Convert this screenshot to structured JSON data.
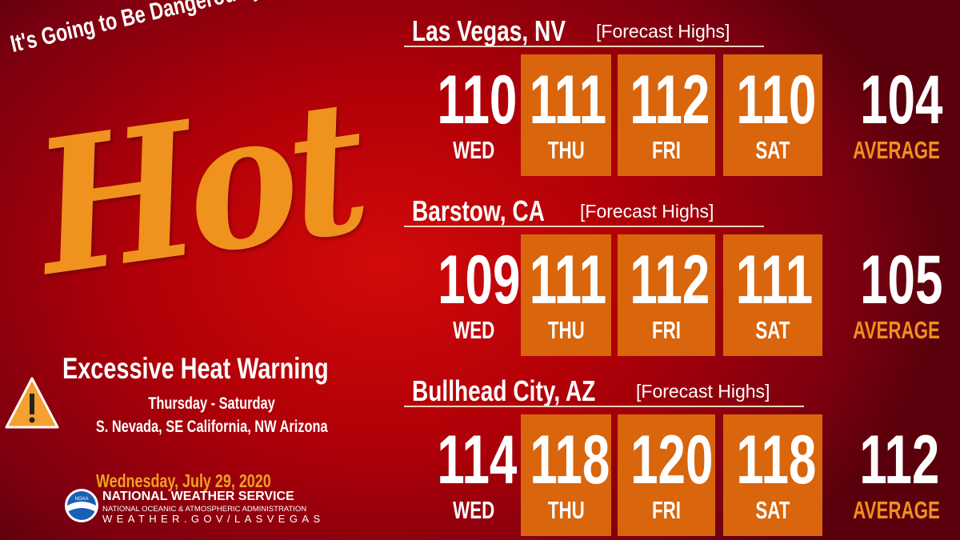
{
  "tagline": "It's Going to Be Dangerously",
  "headline": "Hot",
  "warning": {
    "title": "Excessive Heat Warning",
    "days": "Thursday - Saturday",
    "areas": "S. Nevada, SE California, NW Arizona",
    "icon": "warning-triangle-icon"
  },
  "date": "Wednesday, July 29, 2020",
  "nws": {
    "logo_text": "NOAA",
    "name": "NATIONAL WEATHER SERVICE",
    "agency": "NATIONAL OCEANIC & ATMOSPHERIC ADMINISTRATION",
    "url": "WEATHER.GOV/LASVEGAS"
  },
  "colors": {
    "box": "#d9650c",
    "accent": "#f0921e",
    "background": "#c00a0a"
  },
  "forecast_label": "[Forecast Highs]",
  "average_label": "AVERAGE",
  "days": [
    "WED",
    "THU",
    "FRI",
    "SAT"
  ],
  "cities": [
    {
      "name": "Las Vegas, NV",
      "highs": [
        "110",
        "111",
        "112",
        "110"
      ],
      "average": "104"
    },
    {
      "name": "Barstow, CA",
      "highs": [
        "109",
        "111",
        "112",
        "111"
      ],
      "average": "105"
    },
    {
      "name": "Bullhead City, AZ",
      "highs": [
        "114",
        "118",
        "120",
        "118"
      ],
      "average": "112"
    }
  ]
}
